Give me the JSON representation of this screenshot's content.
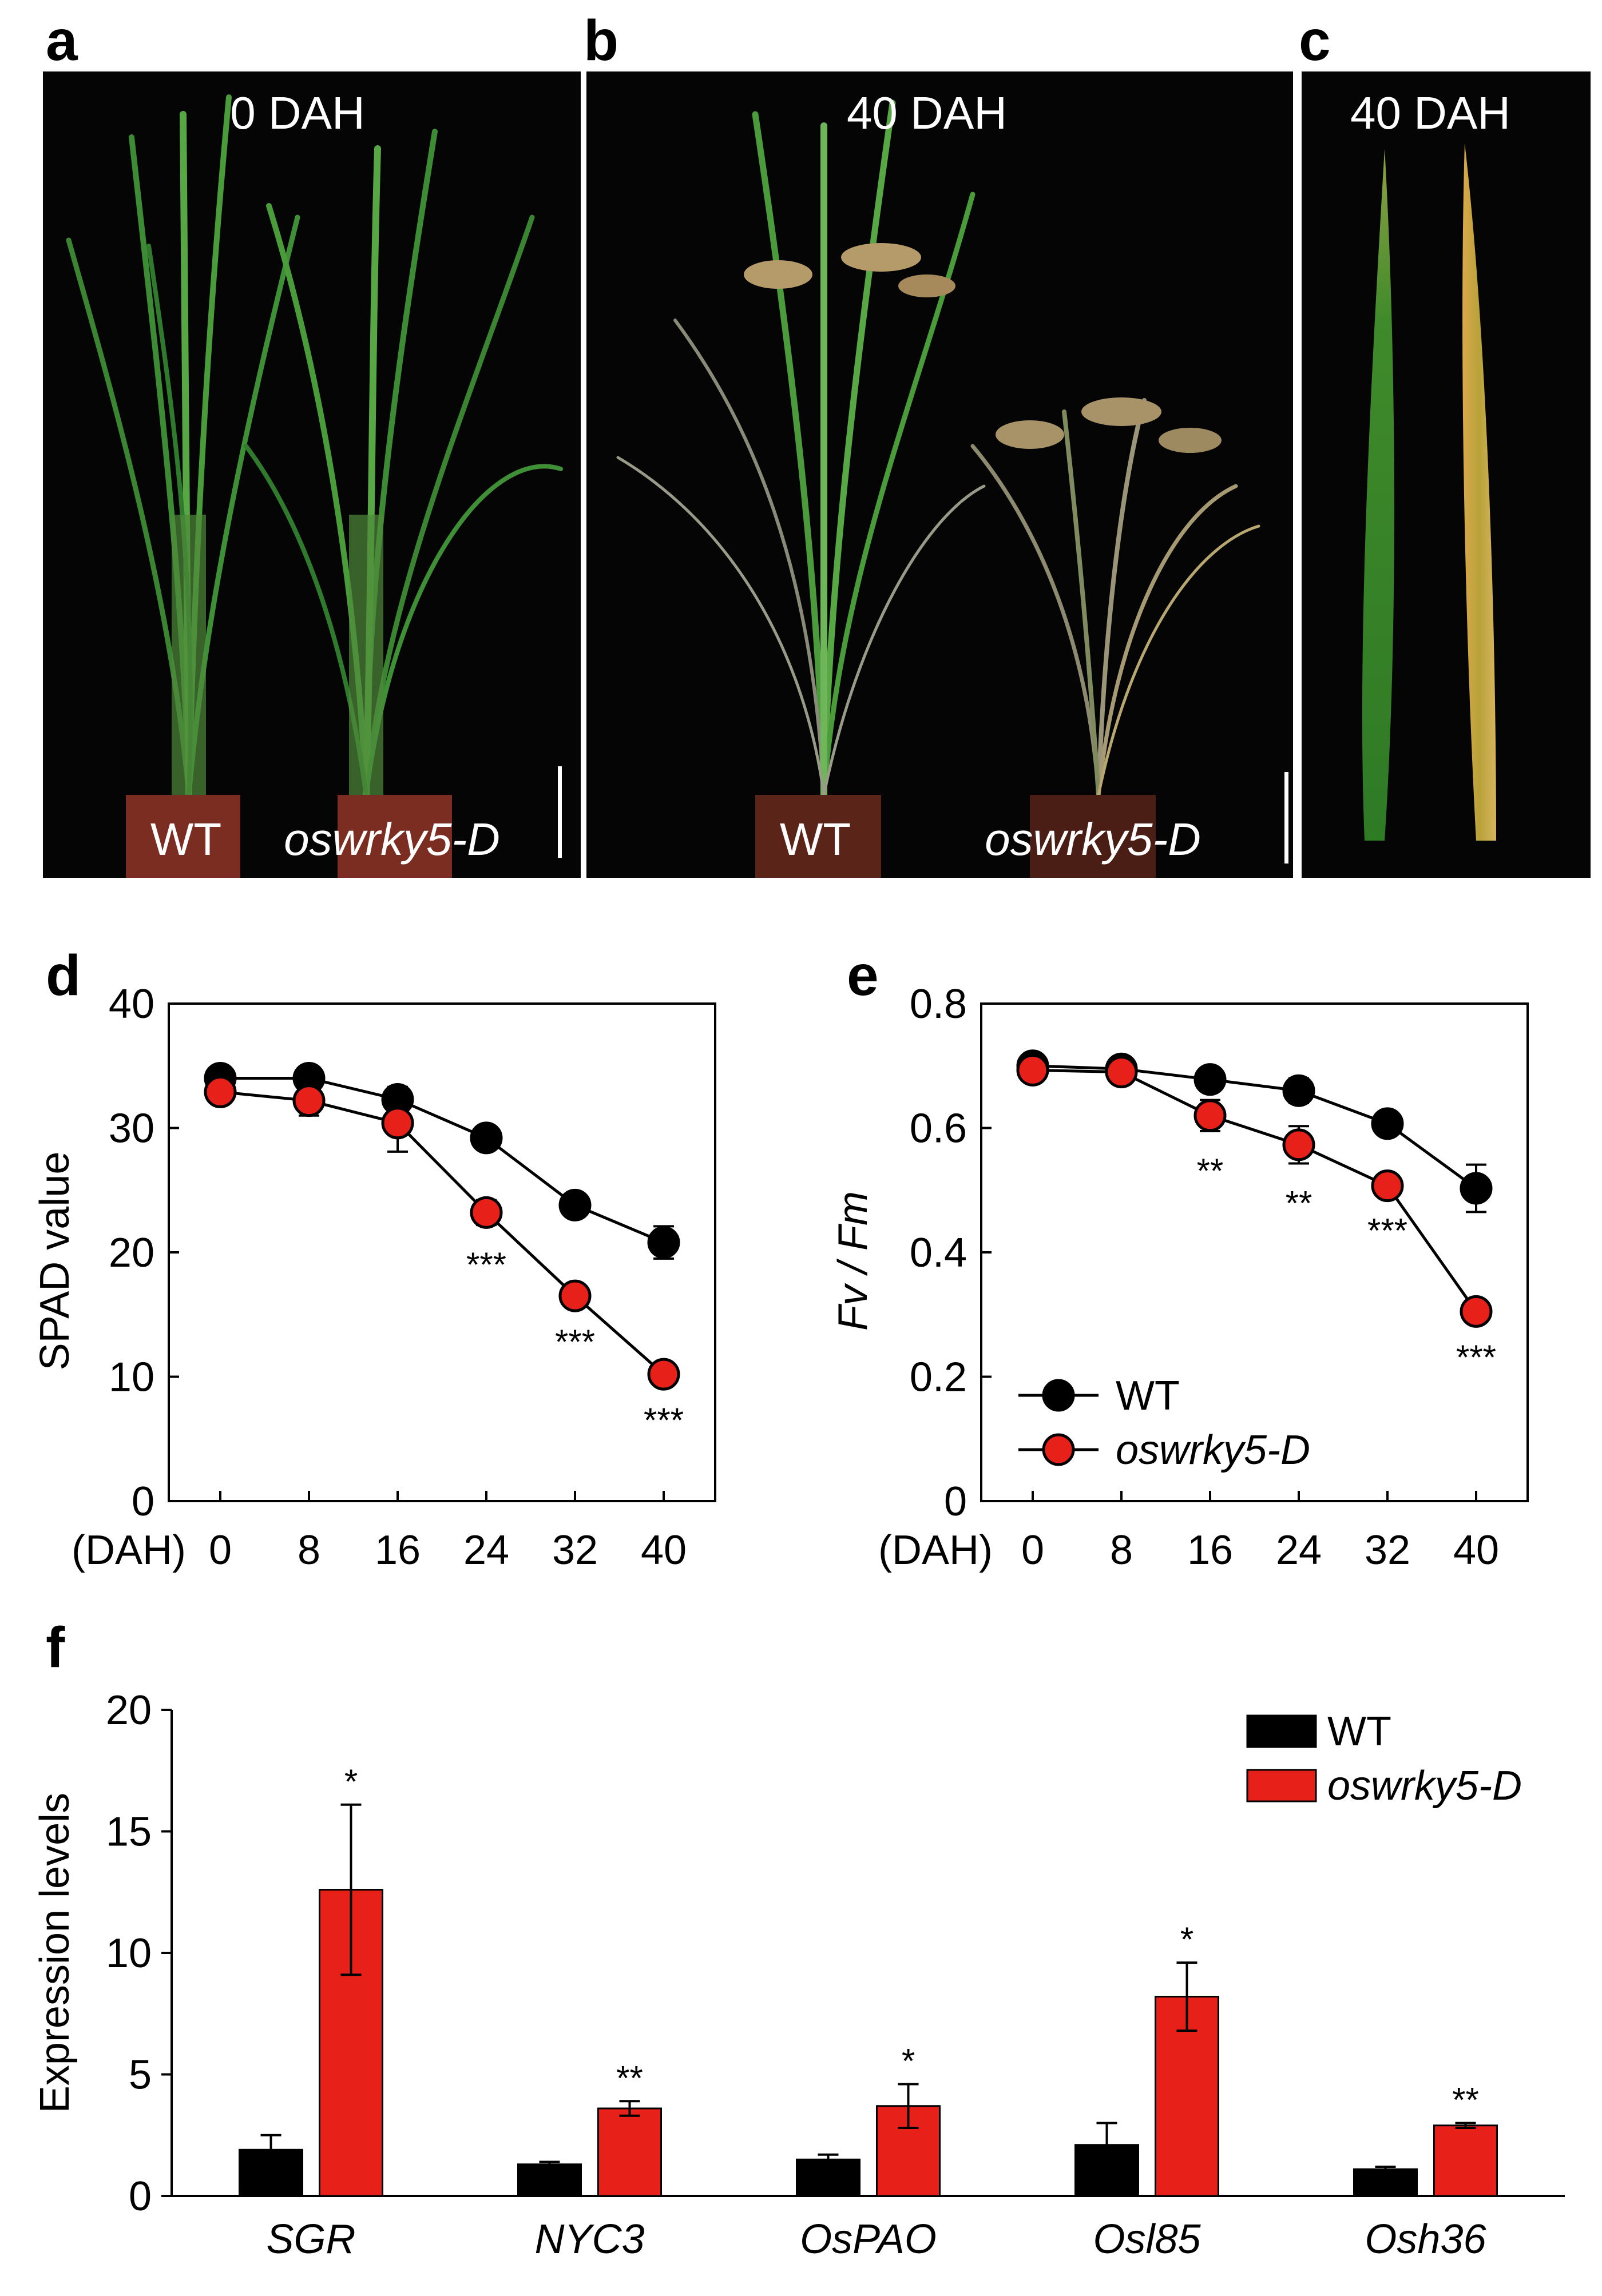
{
  "panels": {
    "a": {
      "letter": "a",
      "label": "0 DAH",
      "left_label": "WT",
      "right_label": "oswrky5-D"
    },
    "b": {
      "letter": "b",
      "label": "40 DAH",
      "left_label": "WT",
      "right_label": "oswrky5-D"
    },
    "c": {
      "letter": "c",
      "label": "40 DAH"
    }
  },
  "colors": {
    "wt": "#000000",
    "mutant": "#e8201a",
    "photo_bg": "#050505",
    "leaf_green": "#3f8a2a",
    "leaf_yellow": "#c8a13c"
  },
  "chart_data": [
    {
      "id": "d",
      "type": "line",
      "panel_letter": "d",
      "ylabel": "SPAD value",
      "xlabel": "(DAH)",
      "x": [
        0,
        8,
        16,
        24,
        32,
        40
      ],
      "x_tick_labels": [
        "0",
        "8",
        "16",
        "24",
        "32",
        "40"
      ],
      "ylim": [
        0,
        40
      ],
      "y_ticks": [
        0,
        10,
        20,
        30,
        40
      ],
      "y_tick_labels": [
        "0",
        "10",
        "20",
        "30",
        "40"
      ],
      "series": [
        {
          "name": "WT",
          "color": "#000000",
          "values": [
            34.0,
            34.0,
            32.3,
            29.2,
            23.8,
            20.8
          ],
          "errors": [
            0.5,
            0.5,
            1.0,
            0.7,
            0.9,
            1.3
          ]
        },
        {
          "name": "oswrky5-D",
          "color": "#e8201a",
          "values": [
            32.9,
            32.2,
            30.4,
            23.2,
            16.5,
            10.2
          ],
          "errors": [
            0.5,
            1.2,
            2.3,
            1.0,
            0.5,
            0.5
          ]
        }
      ],
      "significance": [
        {
          "x": 24,
          "text": "***"
        },
        {
          "x": 32,
          "text": "***"
        },
        {
          "x": 40,
          "text": "***"
        }
      ]
    },
    {
      "id": "e",
      "type": "line",
      "panel_letter": "e",
      "ylabel": "Fv / Fm",
      "xlabel": "(DAH)",
      "x": [
        0,
        8,
        16,
        24,
        32,
        40
      ],
      "x_tick_labels": [
        "0",
        "8",
        "16",
        "24",
        "32",
        "40"
      ],
      "ylim": [
        0,
        0.8
      ],
      "y_ticks": [
        0,
        0.2,
        0.4,
        0.6,
        0.8
      ],
      "y_tick_labels": [
        "0",
        "0.2",
        "0.4",
        "0.6",
        "0.8"
      ],
      "legend": [
        {
          "label": "WT",
          "color": "#000000"
        },
        {
          "label": "oswrky5-D",
          "color": "#e8201a"
        }
      ],
      "series": [
        {
          "name": "WT",
          "color": "#000000",
          "values": [
            0.7,
            0.695,
            0.678,
            0.66,
            0.607,
            0.503
          ],
          "errors": [
            0.015,
            0.01,
            0.012,
            0.02,
            0.008,
            0.038
          ]
        },
        {
          "name": "oswrky5-D",
          "color": "#e8201a",
          "values": [
            0.693,
            0.69,
            0.62,
            0.573,
            0.507,
            0.305
          ],
          "errors": [
            0.018,
            0.018,
            0.025,
            0.03,
            0.008,
            0.01
          ]
        }
      ],
      "significance": [
        {
          "x": 16,
          "text": "**"
        },
        {
          "x": 24,
          "text": "**"
        },
        {
          "x": 32,
          "text": "***"
        },
        {
          "x": 40,
          "text": "***"
        }
      ]
    },
    {
      "id": "f",
      "type": "bar",
      "panel_letter": "f",
      "ylabel": "Expression levels",
      "xlabel": "",
      "categories": [
        "SGR",
        "NYC3",
        "OsPAO",
        "Osl85",
        "Osh36"
      ],
      "ylim": [
        0,
        20
      ],
      "y_ticks": [
        0,
        5,
        10,
        15,
        20
      ],
      "y_tick_labels": [
        "0",
        "5",
        "10",
        "15",
        "20"
      ],
      "legend": [
        {
          "label": "WT",
          "color": "#000000"
        },
        {
          "label": "oswrky5-D",
          "color": "#e8201a"
        }
      ],
      "series": [
        {
          "name": "WT",
          "color": "#000000",
          "values": [
            1.9,
            1.3,
            1.5,
            2.1,
            1.1
          ],
          "errors": [
            0.6,
            0.1,
            0.2,
            0.9,
            0.1
          ]
        },
        {
          "name": "oswrky5-D",
          "color": "#e8201a",
          "values": [
            12.6,
            3.6,
            3.7,
            8.2,
            2.9
          ],
          "errors": [
            3.5,
            0.3,
            0.9,
            1.4,
            0.1
          ]
        }
      ],
      "significance": [
        "*",
        "**",
        "*",
        "*",
        "**"
      ]
    }
  ]
}
